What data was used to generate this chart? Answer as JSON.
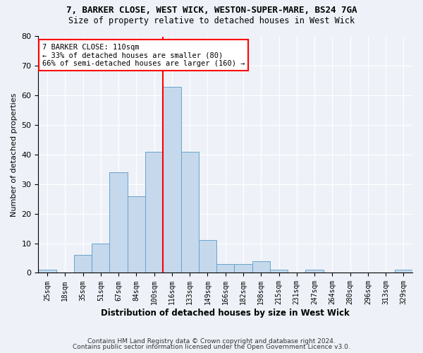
{
  "title1": "7, BARKER CLOSE, WEST WICK, WESTON-SUPER-MARE, BS24 7GA",
  "title2": "Size of property relative to detached houses in West Wick",
  "xlabel": "Distribution of detached houses by size in West Wick",
  "ylabel": "Number of detached properties",
  "bins": [
    "25sqm",
    "18sqm",
    "35sqm",
    "51sqm",
    "67sqm",
    "84sqm",
    "100sqm",
    "116sqm",
    "133sqm",
    "149sqm",
    "166sqm",
    "182sqm",
    "198sqm",
    "215sqm",
    "231sqm",
    "247sqm",
    "264sqm",
    "280sqm",
    "296sqm",
    "313sqm",
    "329sqm"
  ],
  "values": [
    1,
    0,
    6,
    10,
    34,
    26,
    41,
    63,
    41,
    11,
    3,
    3,
    4,
    1,
    0,
    1,
    0,
    0,
    0,
    0,
    1
  ],
  "bar_color": "#c5d8ec",
  "bar_edge_color": "#6aa3cc",
  "vline_x_index": 7,
  "vline_color": "red",
  "annotation_line1": "7 BARKER CLOSE: 110sqm",
  "annotation_line2": "← 33% of detached houses are smaller (80)",
  "annotation_line3": "66% of semi-detached houses are larger (160) →",
  "annotation_box_color": "white",
  "annotation_box_edge": "red",
  "ylim": [
    0,
    80
  ],
  "yticks": [
    0,
    10,
    20,
    30,
    40,
    50,
    60,
    70,
    80
  ],
  "footer1": "Contains HM Land Registry data © Crown copyright and database right 2024.",
  "footer2": "Contains public sector information licensed under the Open Government Licence v3.0.",
  "bg_color": "#eef2f8",
  "plot_bg": "#eef2f8",
  "title1_fontsize": 9,
  "title2_fontsize": 8.5,
  "xlabel_fontsize": 8.5,
  "ylabel_fontsize": 8
}
